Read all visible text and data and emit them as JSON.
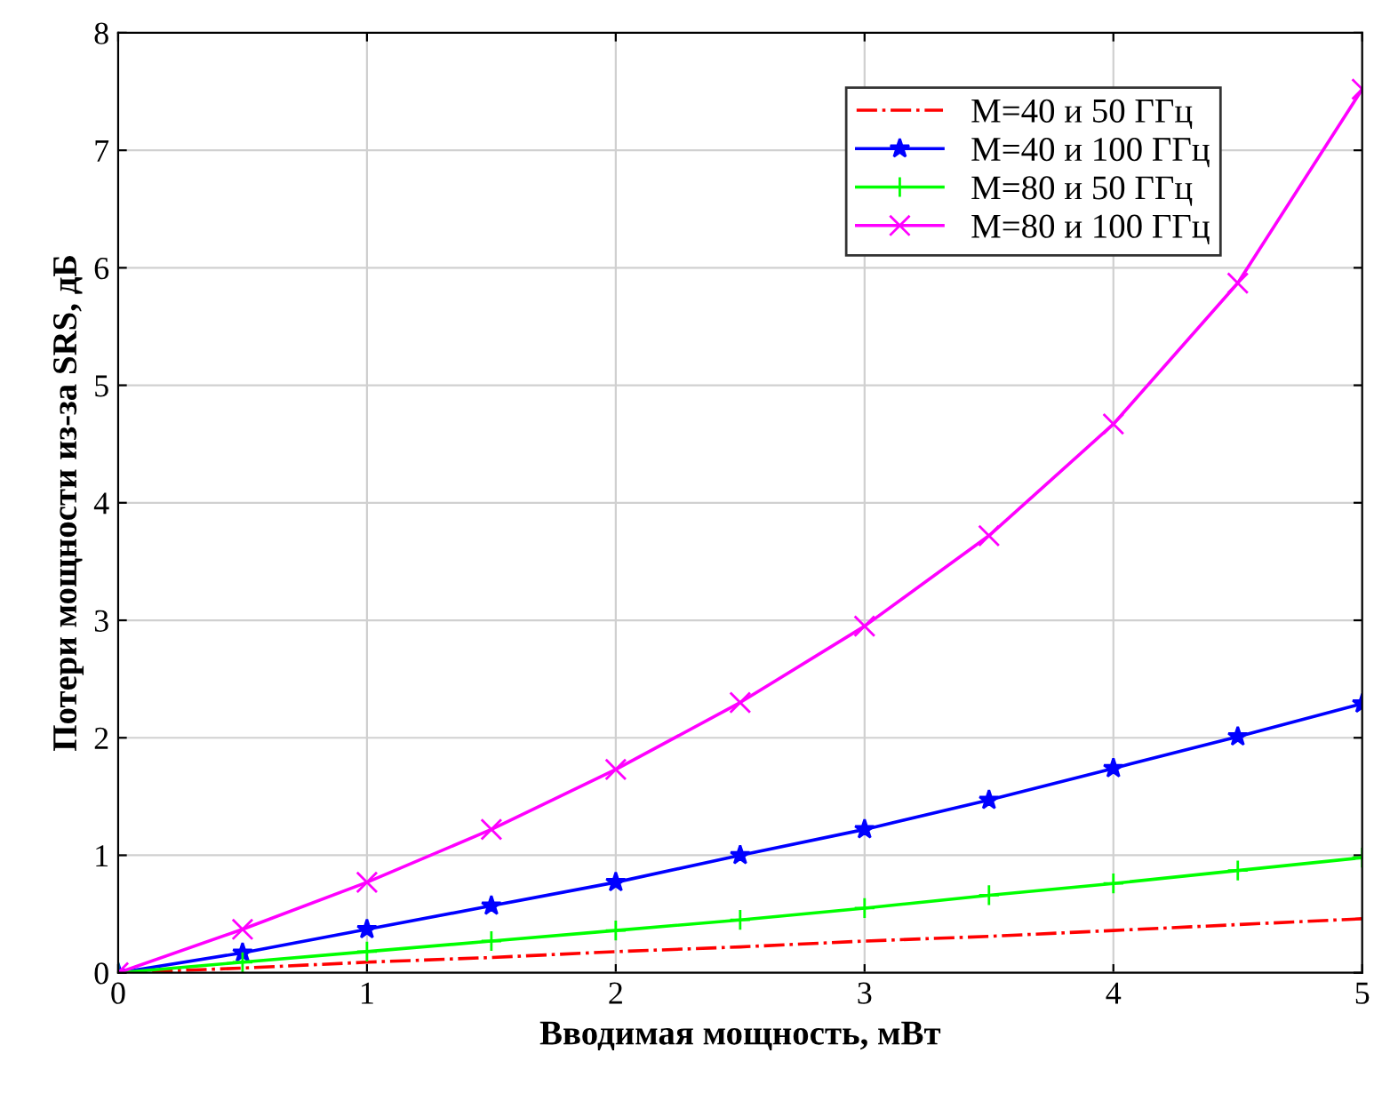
{
  "chart_data": {
    "type": "line",
    "xlabel": "Вводимая мощность, мВт",
    "ylabel": "Потери мощности из-за SRS, дБ",
    "x": [
      0,
      0.5,
      1,
      1.5,
      2,
      2.5,
      3,
      3.5,
      4,
      4.5,
      5
    ],
    "xlim": [
      0,
      5
    ],
    "xticks": [
      0,
      1,
      2,
      3,
      4,
      5
    ],
    "ylim": [
      0,
      8
    ],
    "yticks": [
      0,
      1,
      2,
      3,
      4,
      5,
      6,
      7,
      8
    ],
    "grid": true,
    "legend": "top right",
    "series": [
      {
        "name": "M=40 и 50 ГГц",
        "color": "#ff0000",
        "marker": "none",
        "line_style": "dashdot",
        "values": [
          0,
          0.04,
          0.09,
          0.13,
          0.18,
          0.22,
          0.27,
          0.31,
          0.36,
          0.41,
          0.46
        ]
      },
      {
        "name": "M=40 и 100 ГГц",
        "color": "#0000ff",
        "marker": "star",
        "line_style": "solid",
        "values": [
          0,
          0.17,
          0.37,
          0.57,
          0.77,
          1.0,
          1.22,
          1.47,
          1.74,
          2.01,
          2.29
        ]
      },
      {
        "name": "M=80 и 50 ГГц",
        "color": "#00ff00",
        "marker": "plus",
        "line_style": "solid",
        "values": [
          0,
          0.09,
          0.18,
          0.27,
          0.36,
          0.45,
          0.55,
          0.66,
          0.76,
          0.87,
          0.98
        ]
      },
      {
        "name": "M=80 и 100 ГГц",
        "color": "#ff00ff",
        "marker": "cross",
        "line_style": "solid",
        "values": [
          0,
          0.37,
          0.77,
          1.22,
          1.73,
          2.3,
          2.95,
          3.72,
          4.67,
          5.87,
          7.52
        ]
      }
    ]
  }
}
